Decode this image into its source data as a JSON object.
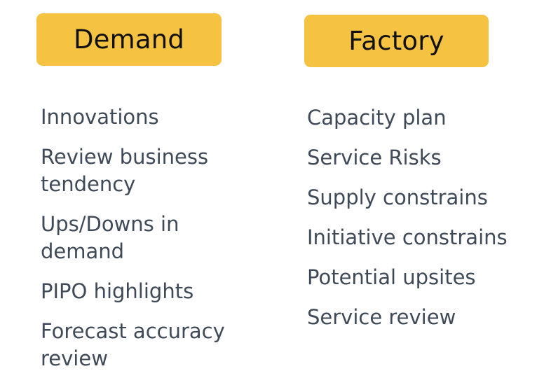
{
  "columns": [
    {
      "header": "Demand",
      "items": [
        "Innovations",
        "Review business tendency",
        "Ups/Downs in demand",
        "PIPO highlights",
        "Forecast accuracy review"
      ]
    },
    {
      "header": "Factory",
      "items": [
        "Capacity plan",
        "Service Risks",
        "Supply constrains",
        "Initiative constrains",
        "Potential upsites",
        "Service review"
      ]
    }
  ],
  "colors": {
    "header_fill": "#F5C242",
    "header_text": "#111111",
    "item_text": "#3f4a58"
  }
}
